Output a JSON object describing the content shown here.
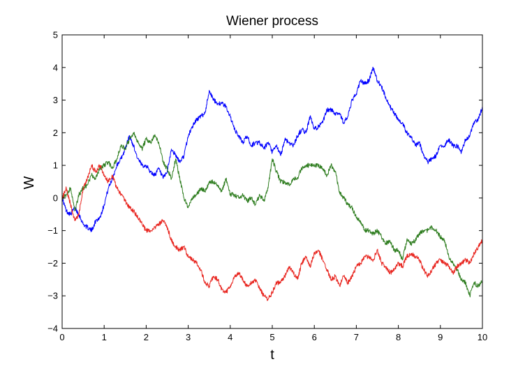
{
  "chart_data": {
    "type": "line",
    "title": "Wiener process",
    "xlabel": "t",
    "ylabel": "W",
    "xlim": [
      0,
      10
    ],
    "ylim": [
      -4,
      5
    ],
    "xticks": [
      "0",
      "1",
      "2",
      "3",
      "4",
      "5",
      "6",
      "7",
      "8",
      "9",
      "10"
    ],
    "yticks": [
      "5",
      "4",
      "3",
      "2",
      "1",
      "0",
      "−1",
      "−2",
      "−3",
      "−4"
    ],
    "grid": false,
    "legend": false,
    "series": [
      {
        "color": "#0000ff",
        "x": [
          0,
          0.1,
          0.2,
          0.3,
          0.4,
          0.5,
          0.6,
          0.7,
          0.8,
          0.9,
          1.0,
          1.1,
          1.2,
          1.3,
          1.4,
          1.5,
          1.6,
          1.7,
          1.8,
          1.9,
          2.0,
          2.1,
          2.2,
          2.3,
          2.4,
          2.5,
          2.6,
          2.7,
          2.8,
          2.9,
          3.0,
          3.1,
          3.2,
          3.3,
          3.4,
          3.5,
          3.6,
          3.7,
          3.8,
          3.9,
          4.0,
          4.1,
          4.2,
          4.3,
          4.4,
          4.5,
          4.6,
          4.7,
          4.8,
          4.9,
          5.0,
          5.1,
          5.2,
          5.3,
          5.4,
          5.5,
          5.6,
          5.7,
          5.8,
          5.9,
          6.0,
          6.1,
          6.2,
          6.3,
          6.4,
          6.5,
          6.6,
          6.7,
          6.8,
          6.9,
          7.0,
          7.1,
          7.2,
          7.3,
          7.4,
          7.5,
          7.6,
          7.7,
          7.8,
          7.9,
          8.0,
          8.1,
          8.2,
          8.3,
          8.4,
          8.5,
          8.6,
          8.7,
          8.8,
          8.9,
          9.0,
          9.1,
          9.2,
          9.3,
          9.4,
          9.5,
          9.6,
          9.7,
          9.8,
          9.9,
          10.0
        ],
        "y": [
          0,
          -0.4,
          -0.5,
          -0.3,
          -0.5,
          -0.8,
          -0.9,
          -1.0,
          -0.7,
          -0.6,
          -0.2,
          0.3,
          0.6,
          1.0,
          1.2,
          1.5,
          1.9,
          1.6,
          1.2,
          1.0,
          1.0,
          0.8,
          0.7,
          0.9,
          0.6,
          0.8,
          1.5,
          1.3,
          1.1,
          1.3,
          1.9,
          2.2,
          2.4,
          2.5,
          2.6,
          3.3,
          3.0,
          2.9,
          2.9,
          2.8,
          2.5,
          2.1,
          1.9,
          1.7,
          1.9,
          1.6,
          1.7,
          1.7,
          1.5,
          1.7,
          1.4,
          1.6,
          1.3,
          1.8,
          1.7,
          1.6,
          1.9,
          2.1,
          2.0,
          2.5,
          2.1,
          2.2,
          2.3,
          2.7,
          2.7,
          2.6,
          2.6,
          2.3,
          2.5,
          3.0,
          3.2,
          3.6,
          3.5,
          3.6,
          4.0,
          3.6,
          3.4,
          3.1,
          2.8,
          2.6,
          2.4,
          2.3,
          2.0,
          1.9,
          1.6,
          1.7,
          1.3,
          1.1,
          1.2,
          1.3,
          1.6,
          1.6,
          1.8,
          1.6,
          1.6,
          1.4,
          1.8,
          1.9,
          2.3,
          2.4,
          2.8
        ]
      },
      {
        "color": "#2e7d1f",
        "x": [
          0,
          0.1,
          0.2,
          0.3,
          0.4,
          0.5,
          0.6,
          0.7,
          0.8,
          0.9,
          1.0,
          1.1,
          1.2,
          1.3,
          1.4,
          1.5,
          1.6,
          1.7,
          1.8,
          1.9,
          2.0,
          2.1,
          2.2,
          2.3,
          2.4,
          2.5,
          2.6,
          2.7,
          2.8,
          2.9,
          3.0,
          3.1,
          3.2,
          3.3,
          3.4,
          3.5,
          3.6,
          3.7,
          3.8,
          3.9,
          4.0,
          4.1,
          4.2,
          4.3,
          4.4,
          4.5,
          4.6,
          4.7,
          4.8,
          4.9,
          5.0,
          5.1,
          5.2,
          5.3,
          5.4,
          5.5,
          5.6,
          5.7,
          5.8,
          5.9,
          6.0,
          6.1,
          6.2,
          6.3,
          6.4,
          6.5,
          6.6,
          6.7,
          6.8,
          6.9,
          7.0,
          7.1,
          7.2,
          7.3,
          7.4,
          7.5,
          7.6,
          7.7,
          7.8,
          7.9,
          8.0,
          8.1,
          8.2,
          8.3,
          8.4,
          8.5,
          8.6,
          8.7,
          8.8,
          8.9,
          9.0,
          9.1,
          9.2,
          9.3,
          9.4,
          9.5,
          9.6,
          9.7,
          9.8,
          9.9,
          10.0
        ],
        "y": [
          0,
          0.1,
          0.3,
          -0.4,
          0.1,
          0.3,
          0.4,
          0.7,
          0.6,
          0.9,
          1.0,
          1.1,
          0.9,
          1.2,
          1.6,
          1.5,
          1.8,
          2.0,
          1.7,
          1.5,
          1.8,
          1.7,
          1.9,
          1.7,
          1.1,
          0.9,
          0.6,
          1.2,
          0.6,
          0.0,
          -0.3,
          0.0,
          0.1,
          0.3,
          0.2,
          0.5,
          0.5,
          0.4,
          0.2,
          0.6,
          0.1,
          0.1,
          0.0,
          0.1,
          -0.1,
          0.0,
          -0.2,
          0.1,
          -0.1,
          0.3,
          1.2,
          0.8,
          0.5,
          0.5,
          0.4,
          0.6,
          0.6,
          0.9,
          1.0,
          1.0,
          1.0,
          1.0,
          0.9,
          0.7,
          1.0,
          0.8,
          0.2,
          0.0,
          -0.2,
          -0.3,
          -0.6,
          -0.7,
          -1.0,
          -1.0,
          -1.1,
          -1.0,
          -1.2,
          -1.4,
          -1.3,
          -1.6,
          -1.6,
          -1.9,
          -1.3,
          -1.4,
          -1.3,
          -1.1,
          -1.0,
          -1.0,
          -0.9,
          -1.0,
          -1.2,
          -1.3,
          -1.8,
          -2.0,
          -2.2,
          -2.5,
          -2.6,
          -3.0,
          -2.6,
          -2.7,
          -2.5
        ]
      },
      {
        "color": "#e8251f",
        "x": [
          0,
          0.1,
          0.2,
          0.3,
          0.4,
          0.5,
          0.6,
          0.7,
          0.8,
          0.9,
          1.0,
          1.1,
          1.2,
          1.3,
          1.4,
          1.5,
          1.6,
          1.7,
          1.8,
          1.9,
          2.0,
          2.1,
          2.2,
          2.3,
          2.4,
          2.5,
          2.6,
          2.7,
          2.8,
          2.9,
          3.0,
          3.1,
          3.2,
          3.3,
          3.4,
          3.5,
          3.6,
          3.7,
          3.8,
          3.9,
          4.0,
          4.1,
          4.2,
          4.3,
          4.4,
          4.5,
          4.6,
          4.7,
          4.8,
          4.9,
          5.0,
          5.1,
          5.2,
          5.3,
          5.4,
          5.5,
          5.6,
          5.7,
          5.8,
          5.9,
          6.0,
          6.1,
          6.2,
          6.3,
          6.4,
          6.5,
          6.6,
          6.7,
          6.8,
          6.9,
          7.0,
          7.1,
          7.2,
          7.3,
          7.4,
          7.5,
          7.6,
          7.7,
          7.8,
          7.9,
          8.0,
          8.1,
          8.2,
          8.3,
          8.4,
          8.5,
          8.6,
          8.7,
          8.8,
          8.9,
          9.0,
          9.1,
          9.2,
          9.3,
          9.4,
          9.5,
          9.6,
          9.7,
          9.8,
          9.9,
          10.0
        ],
        "y": [
          0,
          0.3,
          -0.2,
          -0.7,
          -0.5,
          0.3,
          0.6,
          1.0,
          0.8,
          1.0,
          0.7,
          0.5,
          0.7,
          0.3,
          0.1,
          -0.1,
          -0.3,
          -0.4,
          -0.6,
          -0.8,
          -1.0,
          -1.0,
          -0.9,
          -0.8,
          -0.7,
          -0.9,
          -1.3,
          -1.5,
          -1.6,
          -1.5,
          -1.8,
          -1.9,
          -2.0,
          -2.2,
          -2.6,
          -2.7,
          -2.4,
          -2.5,
          -2.8,
          -2.9,
          -2.7,
          -2.4,
          -2.3,
          -2.5,
          -2.7,
          -2.6,
          -2.5,
          -2.8,
          -3.0,
          -3.1,
          -2.9,
          -2.6,
          -2.6,
          -2.4,
          -2.1,
          -2.3,
          -2.5,
          -2.0,
          -1.8,
          -2.1,
          -1.7,
          -1.6,
          -1.9,
          -2.2,
          -2.5,
          -2.4,
          -2.7,
          -2.4,
          -2.6,
          -2.4,
          -2.1,
          -2.0,
          -1.8,
          -1.8,
          -1.9,
          -1.6,
          -2.0,
          -2.1,
          -2.3,
          -2.2,
          -2.0,
          -2.1,
          -1.8,
          -1.7,
          -1.8,
          -1.9,
          -2.2,
          -2.4,
          -2.2,
          -2.0,
          -1.9,
          -2.0,
          -2.1,
          -2.3,
          -2.1,
          -2.0,
          -1.9,
          -2.0,
          -1.7,
          -1.5,
          -1.3
        ]
      }
    ]
  }
}
